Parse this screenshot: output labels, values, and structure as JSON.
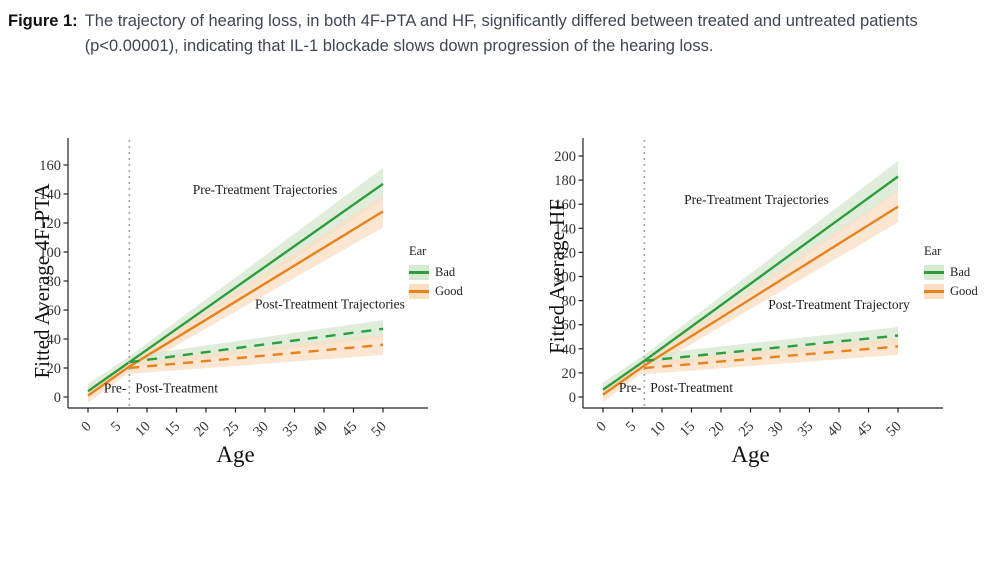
{
  "caption": {
    "label": "Figure 1:",
    "text": "The trajectory of hearing loss, in both 4F-PTA and HF, significantly differed between treated and untreated patients (p<0.00001), indicating that IL-1 blockade slows down progression of the hearing loss."
  },
  "colors": {
    "bad": "#2e9d3e",
    "good": "#e8821e",
    "bad_ribbon": "#d7e9d1",
    "good_ribbon": "#f9e0c5",
    "caption_text": "#3e4654",
    "figure_label": "#111111",
    "dotted_line": "#a3a3a3",
    "axis": "#222222"
  },
  "chart_data": [
    {
      "type": "line",
      "title": "",
      "xlabel": "Age",
      "ylabel": "Fitted Average 4F-PTA",
      "xlim": [
        0,
        50
      ],
      "ylim": [
        0,
        160
      ],
      "xticks": [
        0,
        5,
        10,
        15,
        20,
        25,
        30,
        35,
        40,
        45,
        50
      ],
      "yticks": [
        0,
        20,
        40,
        60,
        80,
        100,
        120,
        140,
        160
      ],
      "grid": false,
      "legend_position": "right",
      "treatment_age": 7,
      "legend": {
        "title": "Ear",
        "entries": [
          {
            "key": "bad",
            "label": "Bad"
          },
          {
            "key": "good",
            "label": "Good"
          }
        ]
      },
      "series": [
        {
          "name": "pre-treatment-bad-ear",
          "ear": "bad",
          "style": "solid",
          "x": [
            0,
            7,
            50
          ],
          "y": [
            4,
            24,
            147
          ],
          "lo": [
            -1,
            20,
            136
          ],
          "hi": [
            9,
            28,
            158
          ]
        },
        {
          "name": "pre-treatment-good-ear",
          "ear": "good",
          "style": "solid",
          "x": [
            0,
            7,
            50
          ],
          "y": [
            1,
            21,
            128
          ],
          "lo": [
            -4,
            17,
            117
          ],
          "hi": [
            6,
            25,
            139
          ]
        },
        {
          "name": "post-treatment-bad-ear",
          "ear": "bad",
          "style": "dashed",
          "x": [
            7,
            50
          ],
          "y": [
            24,
            47
          ],
          "lo": [
            20,
            41
          ],
          "hi": [
            28,
            53
          ]
        },
        {
          "name": "post-treatment-good-ear",
          "ear": "good",
          "style": "dashed",
          "x": [
            7,
            50
          ],
          "y": [
            20,
            36
          ],
          "lo": [
            16,
            29
          ],
          "hi": [
            24,
            43
          ]
        }
      ],
      "annotations": [
        {
          "text": "Pre-Treatment Trajectories",
          "x": 30,
          "y": 140,
          "anchor": "middle"
        },
        {
          "text": "Post-Treatment Trajectories",
          "x": 41,
          "y": 61,
          "anchor": "middle"
        },
        {
          "text": "Pre-",
          "x": 6.5,
          "y": 3,
          "anchor": "end"
        },
        {
          "text": "Post-Treatment",
          "x": 8,
          "y": 3,
          "anchor": "start"
        }
      ]
    },
    {
      "type": "line",
      "title": "",
      "xlabel": "Age",
      "ylabel": "Fitted Average HF",
      "xlim": [
        0,
        50
      ],
      "ylim": [
        0,
        200
      ],
      "xticks": [
        0,
        5,
        10,
        15,
        20,
        25,
        30,
        35,
        40,
        45,
        50
      ],
      "yticks": [
        0,
        20,
        40,
        60,
        80,
        100,
        120,
        140,
        160,
        180,
        200
      ],
      "grid": false,
      "legend_position": "right",
      "treatment_age": 7,
      "legend": {
        "title": "Ear",
        "entries": [
          {
            "key": "bad",
            "label": "Bad"
          },
          {
            "key": "good",
            "label": "Good"
          }
        ]
      },
      "series": [
        {
          "name": "pre-treatment-bad-ear",
          "ear": "bad",
          "style": "solid",
          "x": [
            0,
            7,
            50
          ],
          "y": [
            6,
            30,
            183
          ],
          "lo": [
            0,
            25,
            170
          ],
          "hi": [
            12,
            35,
            196
          ]
        },
        {
          "name": "pre-treatment-good-ear",
          "ear": "good",
          "style": "solid",
          "x": [
            0,
            7,
            50
          ],
          "y": [
            2,
            26,
            158
          ],
          "lo": [
            -4,
            21,
            145
          ],
          "hi": [
            8,
            31,
            171
          ]
        },
        {
          "name": "post-treatment-bad-ear",
          "ear": "bad",
          "style": "dashed",
          "x": [
            7,
            50
          ],
          "y": [
            30,
            51
          ],
          "lo": [
            25,
            44
          ],
          "hi": [
            35,
            58
          ]
        },
        {
          "name": "post-treatment-good-ear",
          "ear": "good",
          "style": "dashed",
          "x": [
            7,
            50
          ],
          "y": [
            24,
            42
          ],
          "lo": [
            19,
            35
          ],
          "hi": [
            29,
            49
          ]
        }
      ],
      "annotations": [
        {
          "text": "Pre-Treatment Trajectories",
          "x": 26,
          "y": 160,
          "anchor": "middle"
        },
        {
          "text": "Post-Treatment Trajectory",
          "x": 40,
          "y": 73,
          "anchor": "middle"
        },
        {
          "text": "Pre-",
          "x": 6.5,
          "y": 4,
          "anchor": "end"
        },
        {
          "text": "Post-Treatment",
          "x": 8,
          "y": 4,
          "anchor": "start"
        }
      ]
    }
  ]
}
